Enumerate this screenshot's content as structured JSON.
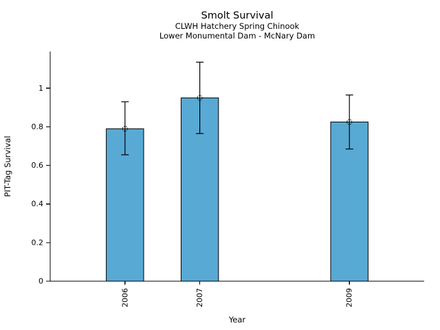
{
  "chart_data": {
    "type": "bar",
    "title": "Smolt Survival",
    "subtitles": [
      "CLWH Hatchery Spring Chinook",
      "Lower Monumental Dam - McNary Dam"
    ],
    "xlabel": "Year",
    "ylabel": "PIT-Tag Survival",
    "categories": [
      "2006",
      "2007",
      "2009"
    ],
    "x_values": [
      2006,
      2007,
      2009
    ],
    "values": [
      0.79,
      0.95,
      0.825
    ],
    "error_low": [
      0.655,
      0.765,
      0.685
    ],
    "error_high": [
      0.93,
      1.135,
      0.965
    ],
    "xlim": [
      2005,
      2010
    ],
    "ylim": [
      0,
      1.19
    ],
    "yticks": [
      0,
      0.2,
      0.4,
      0.6,
      0.8,
      1
    ],
    "ytick_labels": [
      "0",
      "0.2",
      "0.4",
      "0.6",
      "0.8",
      "1"
    ],
    "bar_width_in_x_units": 0.5,
    "grid": false,
    "legend": false,
    "marker": "open-circle",
    "colors": {
      "bar_fill": "#58A9D4",
      "bar_edge": "#000000",
      "error_bar": "#000000",
      "marker_stroke": "#222222",
      "axis": "#000000",
      "text": "#000000"
    }
  }
}
